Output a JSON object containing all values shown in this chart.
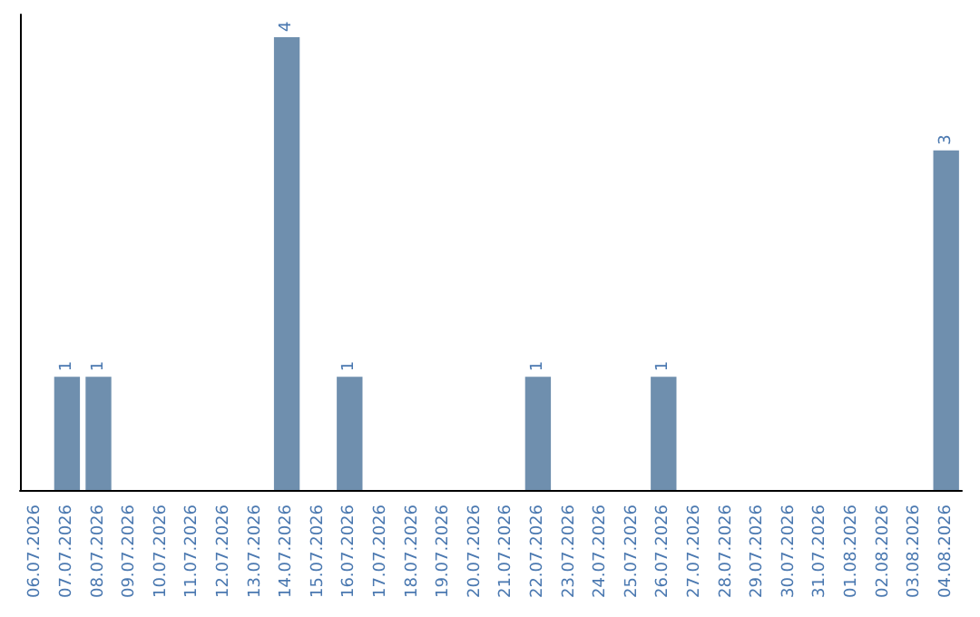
{
  "chart_data": {
    "type": "bar",
    "categories": [
      "06.07.2026",
      "07.07.2026",
      "08.07.2026",
      "09.07.2026",
      "10.07.2026",
      "11.07.2026",
      "12.07.2026",
      "13.07.2026",
      "14.07.2026",
      "15.07.2026",
      "16.07.2026",
      "17.07.2026",
      "18.07.2026",
      "19.07.2026",
      "20.07.2026",
      "21.07.2026",
      "22.07.2026",
      "23.07.2026",
      "24.07.2026",
      "25.07.2026",
      "26.07.2026",
      "27.07.2026",
      "28.07.2026",
      "29.07.2026",
      "30.07.2026",
      "31.07.2026",
      "01.08.2026",
      "02.08.2026",
      "03.08.2026",
      "04.08.2026"
    ],
    "values": [
      0,
      1,
      1,
      0,
      0,
      0,
      0,
      0,
      4,
      0,
      1,
      0,
      0,
      0,
      0,
      0,
      1,
      0,
      0,
      0,
      1,
      0,
      0,
      0,
      0,
      0,
      0,
      0,
      0,
      3
    ],
    "value_labels": [
      null,
      "1",
      "1",
      null,
      null,
      null,
      null,
      null,
      "4",
      null,
      "1",
      null,
      null,
      null,
      null,
      null,
      "1",
      null,
      null,
      null,
      "1",
      null,
      null,
      null,
      null,
      null,
      null,
      null,
      null,
      "3"
    ],
    "color": "#6f8fae",
    "ylim": [
      0,
      4.2
    ],
    "grid": false,
    "tick_labels": "x"
  }
}
